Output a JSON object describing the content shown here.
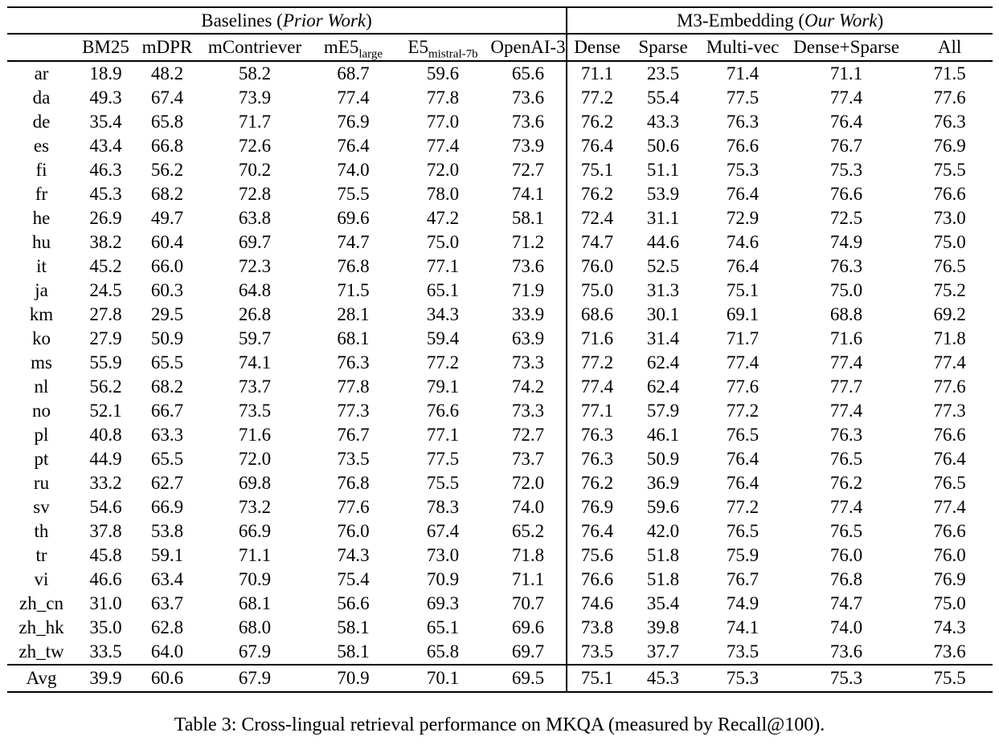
{
  "table": {
    "groups": [
      {
        "prefix": "Baselines (",
        "italic": "Prior Work",
        "suffix": ")"
      },
      {
        "prefix": "M3-Embedding (",
        "italic": "Our Work",
        "suffix": ")"
      }
    ],
    "columns": [
      {
        "main": "BM25",
        "sub": ""
      },
      {
        "main": "mDPR",
        "sub": ""
      },
      {
        "main": "mContriever",
        "sub": ""
      },
      {
        "main": "mE5",
        "sub": "large"
      },
      {
        "main": "E5",
        "sub": "mistral-7b"
      },
      {
        "main": "OpenAI-3",
        "sub": ""
      },
      {
        "main": "Dense",
        "sub": ""
      },
      {
        "main": "Sparse",
        "sub": ""
      },
      {
        "main": "Multi-vec",
        "sub": ""
      },
      {
        "main": "Dense+Sparse",
        "sub": ""
      },
      {
        "main": "All",
        "sub": ""
      }
    ],
    "rows": [
      {
        "lang": "ar",
        "values": [
          "18.9",
          "48.2",
          "58.2",
          "68.7",
          "59.6",
          "65.6",
          "71.1",
          "23.5",
          "71.4",
          "71.1",
          "71.5"
        ],
        "bold": [
          10
        ]
      },
      {
        "lang": "da",
        "values": [
          "49.3",
          "67.4",
          "73.9",
          "77.4",
          "77.8",
          "73.6",
          "77.2",
          "55.4",
          "77.5",
          "77.4",
          "77.6"
        ],
        "bold": [
          4
        ]
      },
      {
        "lang": "de",
        "values": [
          "35.4",
          "65.8",
          "71.7",
          "76.9",
          "77.0",
          "73.6",
          "76.2",
          "43.3",
          "76.3",
          "76.4",
          "76.3"
        ],
        "bold": [
          4
        ]
      },
      {
        "lang": "es",
        "values": [
          "43.4",
          "66.8",
          "72.6",
          "76.4",
          "77.4",
          "73.9",
          "76.4",
          "50.6",
          "76.6",
          "76.7",
          "76.9"
        ],
        "bold": [
          4
        ]
      },
      {
        "lang": "fi",
        "values": [
          "46.3",
          "56.2",
          "70.2",
          "74.0",
          "72.0",
          "72.7",
          "75.1",
          "51.1",
          "75.3",
          "75.3",
          "75.5"
        ],
        "bold": [
          10
        ]
      },
      {
        "lang": "fr",
        "values": [
          "45.3",
          "68.2",
          "72.8",
          "75.5",
          "78.0",
          "74.1",
          "76.2",
          "53.9",
          "76.4",
          "76.6",
          "76.6"
        ],
        "bold": [
          4
        ]
      },
      {
        "lang": "he",
        "values": [
          "26.9",
          "49.7",
          "63.8",
          "69.6",
          "47.2",
          "58.1",
          "72.4",
          "31.1",
          "72.9",
          "72.5",
          "73.0"
        ],
        "bold": [
          10
        ]
      },
      {
        "lang": "hu",
        "values": [
          "38.2",
          "60.4",
          "69.7",
          "74.7",
          "75.0",
          "71.2",
          "74.7",
          "44.6",
          "74.6",
          "74.9",
          "75.0"
        ],
        "bold": [
          4,
          10
        ]
      },
      {
        "lang": "it",
        "values": [
          "45.2",
          "66.0",
          "72.3",
          "76.8",
          "77.1",
          "73.6",
          "76.0",
          "52.5",
          "76.4",
          "76.3",
          "76.5"
        ],
        "bold": [
          4
        ]
      },
      {
        "lang": "ja",
        "values": [
          "24.5",
          "60.3",
          "64.8",
          "71.5",
          "65.1",
          "71.9",
          "75.0",
          "31.3",
          "75.1",
          "75.0",
          "75.2"
        ],
        "bold": [
          10
        ]
      },
      {
        "lang": "km",
        "values": [
          "27.8",
          "29.5",
          "26.8",
          "28.1",
          "34.3",
          "33.9",
          "68.6",
          "30.1",
          "69.1",
          "68.8",
          "69.2"
        ],
        "bold": [
          10
        ]
      },
      {
        "lang": "ko",
        "values": [
          "27.9",
          "50.9",
          "59.7",
          "68.1",
          "59.4",
          "63.9",
          "71.6",
          "31.4",
          "71.7",
          "71.6",
          "71.8"
        ],
        "bold": [
          10
        ]
      },
      {
        "lang": "ms",
        "values": [
          "55.9",
          "65.5",
          "74.1",
          "76.3",
          "77.2",
          "73.3",
          "77.2",
          "62.4",
          "77.4",
          "77.4",
          "77.4"
        ],
        "bold": [
          8,
          9,
          10
        ]
      },
      {
        "lang": "nl",
        "values": [
          "56.2",
          "68.2",
          "73.7",
          "77.8",
          "79.1",
          "74.2",
          "77.4",
          "62.4",
          "77.6",
          "77.7",
          "77.6"
        ],
        "bold": [
          4
        ]
      },
      {
        "lang": "no",
        "values": [
          "52.1",
          "66.7",
          "73.5",
          "77.3",
          "76.6",
          "73.3",
          "77.1",
          "57.9",
          "77.2",
          "77.4",
          "77.3"
        ],
        "bold": [
          9
        ]
      },
      {
        "lang": "pl",
        "values": [
          "40.8",
          "63.3",
          "71.6",
          "76.7",
          "77.1",
          "72.7",
          "76.3",
          "46.1",
          "76.5",
          "76.3",
          "76.6"
        ],
        "bold": [
          4
        ]
      },
      {
        "lang": "pt",
        "values": [
          "44.9",
          "65.5",
          "72.0",
          "73.5",
          "77.5",
          "73.7",
          "76.3",
          "50.9",
          "76.4",
          "76.5",
          "76.4"
        ],
        "bold": [
          4
        ]
      },
      {
        "lang": "ru",
        "values": [
          "33.2",
          "62.7",
          "69.8",
          "76.8",
          "75.5",
          "72.0",
          "76.2",
          "36.9",
          "76.4",
          "76.2",
          "76.5"
        ],
        "bold": [
          3
        ]
      },
      {
        "lang": "sv",
        "values": [
          "54.6",
          "66.9",
          "73.2",
          "77.6",
          "78.3",
          "74.0",
          "76.9",
          "59.6",
          "77.2",
          "77.4",
          "77.4"
        ],
        "bold": [
          4
        ]
      },
      {
        "lang": "th",
        "values": [
          "37.8",
          "53.8",
          "66.9",
          "76.0",
          "67.4",
          "65.2",
          "76.4",
          "42.0",
          "76.5",
          "76.5",
          "76.6"
        ],
        "bold": [
          10
        ]
      },
      {
        "lang": "tr",
        "values": [
          "45.8",
          "59.1",
          "71.1",
          "74.3",
          "73.0",
          "71.8",
          "75.6",
          "51.8",
          "75.9",
          "76.0",
          "76.0"
        ],
        "bold": [
          9,
          10
        ]
      },
      {
        "lang": "vi",
        "values": [
          "46.6",
          "63.4",
          "70.9",
          "75.4",
          "70.9",
          "71.1",
          "76.6",
          "51.8",
          "76.7",
          "76.8",
          "76.9"
        ],
        "bold": [
          10
        ]
      },
      {
        "lang": "zh_cn",
        "values": [
          "31.0",
          "63.7",
          "68.1",
          "56.6",
          "69.3",
          "70.7",
          "74.6",
          "35.4",
          "74.9",
          "74.7",
          "75.0"
        ],
        "bold": [
          10
        ]
      },
      {
        "lang": "zh_hk",
        "values": [
          "35.0",
          "62.8",
          "68.0",
          "58.1",
          "65.1",
          "69.6",
          "73.8",
          "39.8",
          "74.1",
          "74.0",
          "74.3"
        ],
        "bold": [
          10
        ]
      },
      {
        "lang": "zh_tw",
        "values": [
          "33.5",
          "64.0",
          "67.9",
          "58.1",
          "65.8",
          "69.7",
          "73.5",
          "37.7",
          "73.5",
          "73.6",
          "73.6"
        ],
        "bold": [
          9,
          10
        ]
      }
    ],
    "avg_row": {
      "lang": "Avg",
      "values": [
        "39.9",
        "60.6",
        "67.9",
        "70.9",
        "70.1",
        "69.5",
        "75.1",
        "45.3",
        "75.3",
        "75.3",
        "75.5"
      ],
      "bold": [
        10
      ]
    }
  },
  "caption": "Table 3: Cross-lingual retrieval performance on MKQA (measured by Recall@100)."
}
